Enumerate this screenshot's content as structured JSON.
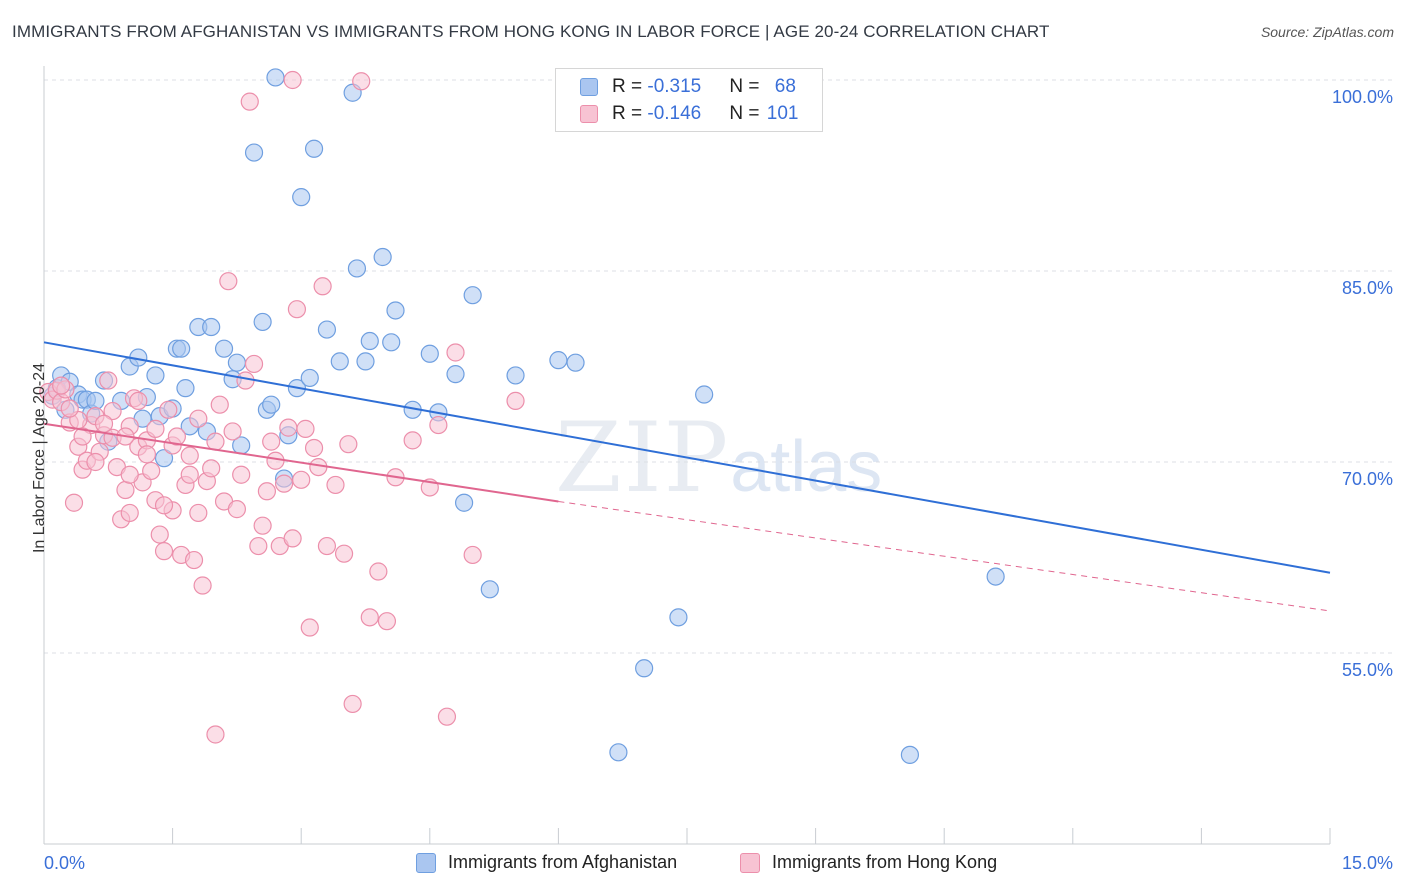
{
  "title": "IMMIGRANTS FROM AFGHANISTAN VS IMMIGRANTS FROM HONG KONG IN LABOR FORCE | AGE 20-24 CORRELATION CHART",
  "source": "Source: ZipAtlas.com",
  "watermark": {
    "zip": "ZIP",
    "atlas": "atlas"
  },
  "legend": {
    "rows": [
      {
        "r_label": "R = ",
        "r_value": "-0.315",
        "n_label": "N = ",
        "n_value": "68",
        "color": "#aac6f0",
        "border": "#6f9fe0"
      },
      {
        "r_label": "R = ",
        "r_value": "-0.146",
        "n_label": "N = ",
        "n_value": "101",
        "color": "#f7c3d3",
        "border": "#ec8fab"
      }
    ]
  },
  "chart_data": {
    "type": "scatter",
    "title": "IMMIGRANTS FROM AFGHANISTAN VS IMMIGRANTS FROM HONG KONG IN LABOR FORCE | AGE 20-24 CORRELATION CHART",
    "xlabel": "",
    "ylabel": "In Labor Force | Age 20-24",
    "xlim": [
      0,
      15
    ],
    "ylim": [
      40,
      102
    ],
    "x_tick_labels": [
      "0.0%",
      "15.0%"
    ],
    "y_ticks": [
      55,
      70,
      85,
      100
    ],
    "y_tick_labels": [
      "55.0%",
      "70.0%",
      "85.0%",
      "100.0%"
    ],
    "grid": true,
    "legend_position": "top-center",
    "series": [
      {
        "name": "Immigrants from Afghanistan",
        "color": "#6f9fe0",
        "fill": "#aac6f0",
        "trend": {
          "x": [
            0,
            15
          ],
          "y": [
            79.4,
            61.3
          ],
          "style": "solid"
        },
        "points": [
          [
            0.1,
            75.2
          ],
          [
            0.15,
            75.8
          ],
          [
            0.2,
            76.8
          ],
          [
            0.25,
            74.1
          ],
          [
            0.3,
            76.3
          ],
          [
            0.4,
            75.3
          ],
          [
            0.45,
            74.9
          ],
          [
            0.5,
            74.9
          ],
          [
            0.55,
            73.8
          ],
          [
            0.6,
            74.8
          ],
          [
            0.7,
            76.4
          ],
          [
            0.75,
            71.6
          ],
          [
            0.9,
            74.8
          ],
          [
            1.0,
            77.5
          ],
          [
            1.1,
            78.2
          ],
          [
            1.15,
            73.4
          ],
          [
            1.2,
            75.1
          ],
          [
            1.3,
            76.8
          ],
          [
            1.35,
            73.6
          ],
          [
            1.4,
            70.3
          ],
          [
            1.5,
            74.2
          ],
          [
            1.55,
            78.9
          ],
          [
            1.6,
            78.9
          ],
          [
            1.65,
            75.8
          ],
          [
            1.7,
            72.8
          ],
          [
            1.8,
            80.6
          ],
          [
            1.9,
            72.4
          ],
          [
            1.95,
            80.6
          ],
          [
            2.1,
            78.9
          ],
          [
            2.2,
            76.5
          ],
          [
            2.25,
            77.8
          ],
          [
            2.3,
            71.3
          ],
          [
            2.45,
            94.3
          ],
          [
            2.55,
            81.0
          ],
          [
            2.6,
            74.1
          ],
          [
            2.65,
            74.5
          ],
          [
            2.7,
            100.2
          ],
          [
            2.8,
            68.7
          ],
          [
            2.85,
            72.1
          ],
          [
            2.95,
            75.8
          ],
          [
            3.0,
            90.8
          ],
          [
            3.1,
            76.6
          ],
          [
            3.15,
            94.6
          ],
          [
            3.3,
            80.4
          ],
          [
            3.45,
            77.9
          ],
          [
            3.6,
            99.0
          ],
          [
            3.65,
            85.2
          ],
          [
            3.75,
            77.9
          ],
          [
            3.8,
            79.5
          ],
          [
            3.95,
            86.1
          ],
          [
            4.05,
            79.4
          ],
          [
            4.1,
            81.9
          ],
          [
            4.3,
            74.1
          ],
          [
            4.5,
            78.5
          ],
          [
            4.6,
            73.9
          ],
          [
            4.8,
            76.9
          ],
          [
            4.9,
            66.8
          ],
          [
            5.0,
            83.1
          ],
          [
            5.2,
            60.0
          ],
          [
            5.5,
            76.8
          ],
          [
            6.0,
            78.0
          ],
          [
            6.2,
            77.8
          ],
          [
            6.7,
            47.2
          ],
          [
            7.0,
            53.8
          ],
          [
            7.4,
            57.8
          ],
          [
            7.7,
            75.3
          ],
          [
            10.1,
            47.0
          ],
          [
            11.1,
            61.0
          ]
        ]
      },
      {
        "name": "Immigrants from Hong Kong",
        "color": "#ec8fab",
        "fill": "#f7c3d3",
        "trend": {
          "x": [
            0,
            6.0,
            15
          ],
          "y": [
            73.0,
            66.9,
            58.3
          ],
          "style": "solid-then-dashed"
        },
        "points": [
          [
            0.05,
            75.5
          ],
          [
            0.1,
            74.9
          ],
          [
            0.15,
            75.6
          ],
          [
            0.2,
            74.7
          ],
          [
            0.25,
            75.7
          ],
          [
            0.3,
            73.1
          ],
          [
            0.35,
            66.8
          ],
          [
            0.4,
            71.2
          ],
          [
            0.45,
            69.4
          ],
          [
            0.5,
            70.1
          ],
          [
            0.55,
            72.9
          ],
          [
            0.6,
            73.6
          ],
          [
            0.65,
            70.8
          ],
          [
            0.7,
            72.1
          ],
          [
            0.75,
            76.4
          ],
          [
            0.8,
            71.9
          ],
          [
            0.85,
            69.6
          ],
          [
            0.9,
            65.5
          ],
          [
            0.95,
            67.8
          ],
          [
            1.0,
            72.8
          ],
          [
            1.05,
            75.0
          ],
          [
            1.1,
            71.2
          ],
          [
            1.15,
            68.4
          ],
          [
            1.2,
            71.7
          ],
          [
            1.25,
            69.3
          ],
          [
            1.3,
            72.6
          ],
          [
            1.35,
            64.3
          ],
          [
            1.4,
            63.0
          ],
          [
            1.45,
            74.1
          ],
          [
            1.5,
            71.3
          ],
          [
            1.55,
            72.0
          ],
          [
            1.6,
            62.7
          ],
          [
            1.65,
            68.2
          ],
          [
            1.7,
            70.5
          ],
          [
            1.75,
            62.3
          ],
          [
            1.8,
            73.4
          ],
          [
            1.85,
            60.3
          ],
          [
            1.9,
            68.5
          ],
          [
            1.95,
            69.5
          ],
          [
            2.0,
            48.6
          ],
          [
            2.05,
            74.5
          ],
          [
            2.1,
            66.9
          ],
          [
            2.15,
            84.2
          ],
          [
            2.2,
            72.4
          ],
          [
            2.25,
            66.3
          ],
          [
            2.3,
            69.0
          ],
          [
            2.35,
            76.4
          ],
          [
            2.4,
            98.3
          ],
          [
            2.45,
            77.7
          ],
          [
            2.5,
            63.4
          ],
          [
            2.55,
            65.0
          ],
          [
            2.6,
            67.7
          ],
          [
            2.65,
            71.6
          ],
          [
            2.7,
            70.1
          ],
          [
            2.75,
            63.4
          ],
          [
            2.8,
            68.3
          ],
          [
            2.85,
            72.7
          ],
          [
            2.9,
            64.0
          ],
          [
            2.95,
            82.0
          ],
          [
            3.0,
            68.6
          ],
          [
            3.05,
            72.6
          ],
          [
            3.1,
            57.0
          ],
          [
            3.15,
            71.1
          ],
          [
            3.2,
            69.6
          ],
          [
            3.25,
            83.8
          ],
          [
            3.3,
            63.4
          ],
          [
            3.4,
            68.2
          ],
          [
            3.5,
            62.8
          ],
          [
            3.55,
            71.4
          ],
          [
            3.6,
            51.0
          ],
          [
            3.7,
            99.9
          ],
          [
            3.8,
            57.8
          ],
          [
            3.9,
            61.4
          ],
          [
            4.0,
            57.5
          ],
          [
            4.1,
            68.8
          ],
          [
            4.3,
            71.7
          ],
          [
            4.5,
            68.0
          ],
          [
            4.6,
            72.9
          ],
          [
            4.7,
            50.0
          ],
          [
            4.8,
            78.6
          ],
          [
            5.0,
            62.7
          ],
          [
            5.5,
            74.8
          ],
          [
            1.0,
            66.0
          ],
          [
            1.2,
            70.6
          ],
          [
            0.8,
            74.0
          ],
          [
            0.4,
            73.3
          ],
          [
            2.9,
            100.0
          ],
          [
            1.3,
            67.0
          ],
          [
            1.7,
            69.0
          ],
          [
            2.0,
            71.6
          ],
          [
            0.6,
            70.0
          ],
          [
            1.0,
            69.0
          ],
          [
            1.5,
            66.2
          ],
          [
            0.3,
            74.2
          ],
          [
            0.45,
            72.0
          ],
          [
            0.2,
            76.0
          ],
          [
            0.7,
            73.0
          ],
          [
            0.95,
            72.0
          ],
          [
            1.1,
            74.8
          ],
          [
            1.4,
            66.6
          ],
          [
            1.8,
            66.0
          ]
        ]
      }
    ]
  }
}
